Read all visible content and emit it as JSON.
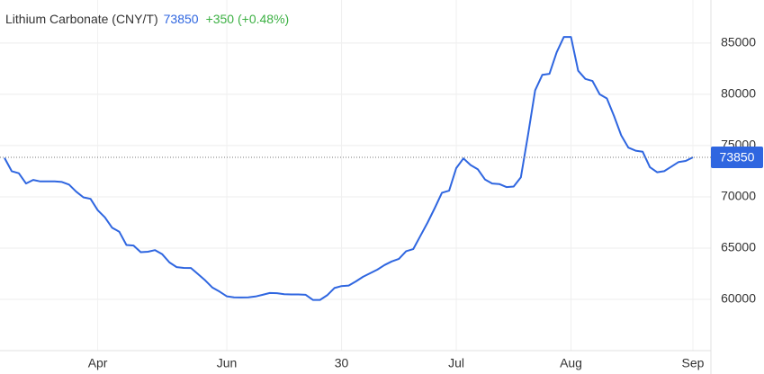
{
  "chart_data": {
    "type": "line",
    "title": "Lithium Carbonate (CNY/T)",
    "last_value": 73850,
    "change": "+350 (+0.48%)",
    "color": "#2f66e0",
    "change_color": "#3cb043",
    "grid": true,
    "categories": [
      null,
      null,
      null,
      null,
      null,
      null,
      null,
      null,
      null,
      null,
      null,
      null,
      null,
      "Apr",
      null,
      null,
      null,
      null,
      null,
      null,
      null,
      null,
      null,
      null,
      null,
      null,
      null,
      null,
      null,
      null,
      null,
      "Jun",
      null,
      null,
      null,
      null,
      null,
      null,
      null,
      null,
      null,
      null,
      null,
      null,
      null,
      null,
      null,
      "30",
      null,
      null,
      null,
      null,
      null,
      null,
      null,
      null,
      null,
      null,
      null,
      null,
      null,
      null,
      null,
      "Jul",
      null,
      null,
      null,
      null,
      null,
      null,
      null,
      null,
      null,
      null,
      null,
      null,
      null,
      null,
      null,
      "Aug",
      null,
      null,
      null,
      null,
      null,
      null,
      null,
      null,
      null,
      null,
      null,
      null,
      null,
      null,
      null,
      null,
      "Sep"
    ],
    "values": [
      73800,
      72500,
      72300,
      71300,
      71650,
      71500,
      71500,
      71500,
      71450,
      71200,
      70500,
      69950,
      69800,
      68700,
      68000,
      67000,
      66600,
      65300,
      65250,
      64600,
      64650,
      64800,
      64400,
      63600,
      63150,
      63070,
      63060,
      62450,
      61850,
      61150,
      60750,
      60300,
      60200,
      60180,
      60200,
      60280,
      60450,
      60620,
      60600,
      60500,
      60480,
      60480,
      60450,
      59950,
      59950,
      60400,
      61100,
      61300,
      61350,
      61750,
      62200,
      62550,
      62900,
      63350,
      63700,
      63950,
      64700,
      64900,
      66200,
      67500,
      68900,
      70400,
      70600,
      72800,
      73750,
      73100,
      72700,
      71700,
      71300,
      71250,
      70950,
      71000,
      71900,
      76000,
      80400,
      81900,
      82000,
      84100,
      85600,
      85600,
      82300,
      81500,
      81300,
      80000,
      79600,
      77900,
      76000,
      74800,
      74500,
      74400,
      72900,
      72400,
      72500,
      72950,
      73400,
      73500,
      73850
    ],
    "ylim": [
      55000,
      89200
    ],
    "yticks": [
      60000,
      65000,
      70000,
      75000,
      80000,
      85000
    ]
  }
}
